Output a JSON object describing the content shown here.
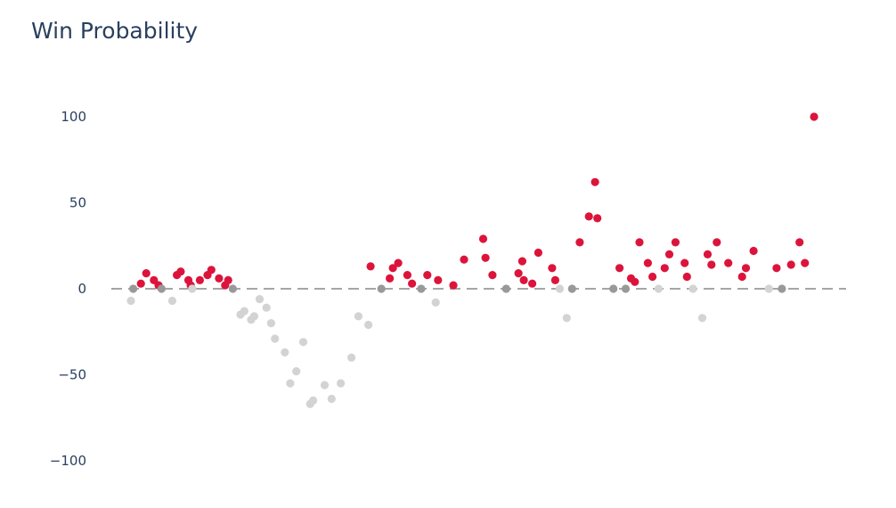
{
  "chart_data": {
    "type": "scatter",
    "title": "Win Probability",
    "xlabel": "",
    "ylabel": "",
    "ylim": [
      -100,
      100
    ],
    "y_ticks": [
      100,
      50,
      0,
      -50,
      -100
    ],
    "y_tick_labels": [
      "100",
      "50",
      "0",
      "−50",
      "−100"
    ],
    "xlim": [
      0,
      100
    ],
    "reference_line": {
      "y": 0,
      "style": "dashed",
      "color": "#888888"
    },
    "colors": {
      "positive": "#dc143c",
      "negative": "#d3d3d3",
      "zero": "#999999"
    },
    "points": [
      [
        1,
        -7
      ],
      [
        1.3,
        0
      ],
      [
        2.3,
        3
      ],
      [
        3,
        9
      ],
      [
        4,
        5
      ],
      [
        4.6,
        2
      ],
      [
        5,
        0
      ],
      [
        6.4,
        -7
      ],
      [
        7,
        8
      ],
      [
        7.5,
        10
      ],
      [
        8.5,
        5
      ],
      [
        8.8,
        2
      ],
      [
        9,
        0
      ],
      [
        10,
        5
      ],
      [
        11,
        8
      ],
      [
        11.5,
        11
      ],
      [
        12.5,
        6
      ],
      [
        13.3,
        2
      ],
      [
        13.7,
        5
      ],
      [
        14.3,
        0
      ],
      [
        15.3,
        -15
      ],
      [
        15.8,
        -13
      ],
      [
        16.7,
        -18
      ],
      [
        17.1,
        -16
      ],
      [
        17.8,
        -6
      ],
      [
        18.7,
        -11
      ],
      [
        19.3,
        -20
      ],
      [
        19.8,
        -29
      ],
      [
        21.1,
        -37
      ],
      [
        21.8,
        -55
      ],
      [
        22.6,
        -48
      ],
      [
        23.5,
        -31
      ],
      [
        24.4,
        -67
      ],
      [
        24.8,
        -65
      ],
      [
        26.3,
        -56
      ],
      [
        27.2,
        -64
      ],
      [
        28.4,
        -55
      ],
      [
        29.8,
        -40
      ],
      [
        30.7,
        -16
      ],
      [
        32,
        -21
      ],
      [
        32.3,
        13
      ],
      [
        33.7,
        0
      ],
      [
        34.8,
        6
      ],
      [
        35.2,
        12
      ],
      [
        35.9,
        15
      ],
      [
        37.1,
        8
      ],
      [
        37.7,
        3
      ],
      [
        38.9,
        0
      ],
      [
        39.7,
        8
      ],
      [
        40.8,
        -8
      ],
      [
        41.1,
        5
      ],
      [
        43.1,
        2
      ],
      [
        44.5,
        17
      ],
      [
        47,
        29
      ],
      [
        47.3,
        18
      ],
      [
        48.2,
        8
      ],
      [
        50,
        0
      ],
      [
        51.6,
        9
      ],
      [
        52.1,
        16
      ],
      [
        52.3,
        5
      ],
      [
        53.4,
        3
      ],
      [
        54.2,
        21
      ],
      [
        56,
        12
      ],
      [
        56.4,
        5
      ],
      [
        57,
        0
      ],
      [
        57.9,
        -17
      ],
      [
        58.6,
        0
      ],
      [
        59.6,
        27
      ],
      [
        60.8,
        42
      ],
      [
        61.6,
        62
      ],
      [
        61.9,
        41
      ],
      [
        64,
        0
      ],
      [
        64.8,
        12
      ],
      [
        65.6,
        0
      ],
      [
        66.3,
        6
      ],
      [
        66.8,
        4
      ],
      [
        67.4,
        27
      ],
      [
        68.5,
        15
      ],
      [
        69.1,
        7
      ],
      [
        69.9,
        0
      ],
      [
        70.7,
        12
      ],
      [
        71.3,
        20
      ],
      [
        72.1,
        27
      ],
      [
        73.3,
        15
      ],
      [
        73.6,
        7
      ],
      [
        74.4,
        0
      ],
      [
        75.6,
        -17
      ],
      [
        76.3,
        20
      ],
      [
        76.8,
        14
      ],
      [
        77.5,
        27
      ],
      [
        79,
        15
      ],
      [
        80.8,
        7
      ],
      [
        81.3,
        12
      ],
      [
        82.3,
        22
      ],
      [
        84.3,
        0
      ],
      [
        85.3,
        12
      ],
      [
        86,
        0
      ],
      [
        87.2,
        14
      ],
      [
        88.3,
        27
      ],
      [
        89,
        15
      ],
      [
        90.2,
        100
      ]
    ]
  }
}
